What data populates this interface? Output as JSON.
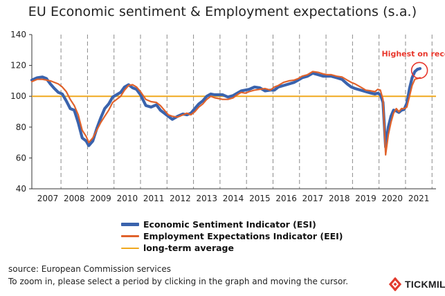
{
  "title": "EU Economic sentiment & Employment expectations (s.a.)",
  "chart_data": {
    "type": "line",
    "title": "EU Economic sentiment & Employment expectations (s.a.)",
    "xlabel": "",
    "ylabel": "",
    "xlim": [
      2006.9,
      2022.15
    ],
    "ylim": [
      40,
      140
    ],
    "yticks": [
      40,
      60,
      80,
      100,
      120,
      140
    ],
    "x_tick_labels": [
      "2007",
      "2008",
      "2009",
      "2010",
      "2011",
      "2012",
      "2013",
      "2014",
      "2015",
      "2016",
      "2017",
      "2018",
      "2019",
      "2020",
      "2021"
    ],
    "year_separators": [
      2008,
      2009,
      2010,
      2011,
      2012,
      2013,
      2014,
      2015,
      2016,
      2017,
      2018,
      2019,
      2020,
      2021,
      2022
    ],
    "grid": "vertical dashed at year boundaries",
    "legend_position": "bottom",
    "series": [
      {
        "name": "Economic Sentiment Indicator (ESI)",
        "color": "#3a63ad",
        "x": [
          2006.9,
          2007.1,
          2007.3,
          2007.45,
          2007.6,
          2007.75,
          2007.9,
          2008.05,
          2008.2,
          2008.35,
          2008.5,
          2008.65,
          2008.8,
          2008.95,
          2009.05,
          2009.2,
          2009.35,
          2009.5,
          2009.65,
          2009.8,
          2009.95,
          2010.1,
          2010.25,
          2010.4,
          2010.55,
          2010.7,
          2010.85,
          2011.0,
          2011.2,
          2011.4,
          2011.6,
          2011.75,
          2011.9,
          2012.05,
          2012.2,
          2012.4,
          2012.6,
          2012.75,
          2012.9,
          2013.05,
          2013.2,
          2013.35,
          2013.5,
          2013.65,
          2013.8,
          2013.95,
          2014.1,
          2014.3,
          2014.5,
          2014.65,
          2014.8,
          2014.95,
          2015.1,
          2015.3,
          2015.5,
          2015.7,
          2015.9,
          2016.05,
          2016.2,
          2016.4,
          2016.6,
          2016.8,
          2016.95,
          2017.1,
          2017.3,
          2017.5,
          2017.7,
          2017.9,
          2018.05,
          2018.2,
          2018.4,
          2018.6,
          2018.8,
          2018.95,
          2019.1,
          2019.3,
          2019.5,
          2019.7,
          2019.85,
          2019.95,
          2020.05,
          2020.15,
          2020.25,
          2020.35,
          2020.45,
          2020.55,
          2020.65,
          2020.75,
          2020.85,
          2020.95,
          2021.05,
          2021.15,
          2021.25,
          2021.35,
          2021.45,
          2021.55
        ],
        "values": [
          110.5,
          112,
          112.5,
          111.5,
          108,
          105,
          102.5,
          101.5,
          97,
          92,
          91,
          83,
          73,
          71,
          68,
          71,
          79,
          86,
          92,
          95,
          99.5,
          101,
          102.5,
          106,
          107.5,
          105.5,
          104.5,
          101,
          94,
          93,
          94.5,
          91,
          89,
          87,
          85,
          87,
          88.5,
          88,
          89,
          92,
          95,
          97,
          100,
          101.5,
          101,
          101,
          101,
          99.5,
          100.5,
          102,
          103.5,
          104,
          104.5,
          106,
          105.5,
          103.5,
          104,
          104,
          106,
          107,
          108,
          109,
          110.5,
          112,
          113,
          115,
          114,
          113,
          113,
          113,
          112,
          111,
          108,
          106,
          105,
          104,
          103,
          102,
          101.5,
          102,
          101,
          96,
          67,
          80,
          87,
          91,
          90.5,
          89.5,
          91,
          91.5,
          95.5,
          105,
          112,
          116,
          117.5,
          118
        ]
      },
      {
        "name": "Employment Expectations Indicator (EEI)",
        "color": "#e0622b",
        "x": [
          2006.9,
          2007.1,
          2007.3,
          2007.45,
          2007.6,
          2007.75,
          2007.9,
          2008.05,
          2008.2,
          2008.35,
          2008.5,
          2008.65,
          2008.8,
          2008.95,
          2009.05,
          2009.2,
          2009.35,
          2009.5,
          2009.65,
          2009.8,
          2009.95,
          2010.1,
          2010.25,
          2010.4,
          2010.55,
          2010.7,
          2010.85,
          2011.0,
          2011.2,
          2011.4,
          2011.6,
          2011.75,
          2011.9,
          2012.05,
          2012.2,
          2012.4,
          2012.6,
          2012.75,
          2012.9,
          2013.05,
          2013.2,
          2013.35,
          2013.5,
          2013.65,
          2013.8,
          2013.95,
          2014.1,
          2014.3,
          2014.5,
          2014.65,
          2014.8,
          2014.95,
          2015.1,
          2015.3,
          2015.5,
          2015.7,
          2015.9,
          2016.05,
          2016.2,
          2016.4,
          2016.6,
          2016.8,
          2016.95,
          2017.1,
          2017.3,
          2017.5,
          2017.7,
          2017.9,
          2018.05,
          2018.2,
          2018.4,
          2018.6,
          2018.8,
          2018.95,
          2019.1,
          2019.3,
          2019.5,
          2019.7,
          2019.85,
          2019.95,
          2020.05,
          2020.15,
          2020.25,
          2020.35,
          2020.45,
          2020.55,
          2020.65,
          2020.75,
          2020.85,
          2020.95,
          2021.05,
          2021.15,
          2021.25,
          2021.35,
          2021.45,
          2021.55
        ],
        "values": [
          109.5,
          111,
          111,
          110.5,
          110,
          109,
          108,
          106,
          103,
          98,
          94,
          88,
          78,
          74,
          70,
          73,
          78,
          83,
          87,
          91,
          96,
          98,
          100,
          104,
          107,
          107.5,
          106,
          103,
          98,
          96.5,
          96,
          94,
          91,
          88,
          87,
          86.5,
          88,
          89,
          88,
          90,
          93,
          95,
          98,
          100,
          99,
          98.5,
          98,
          98,
          99,
          101,
          102.5,
          102,
          103,
          104,
          104.5,
          105,
          104,
          106,
          107,
          109,
          110,
          110.5,
          111.5,
          113,
          114,
          116,
          115.5,
          114.5,
          114,
          114,
          113,
          112.5,
          110.5,
          109,
          108,
          106,
          104,
          103.5,
          103,
          104.5,
          104,
          98,
          62,
          75,
          83,
          89,
          92,
          90,
          92,
          92,
          93,
          100,
          107,
          111,
          111.5,
          112
        ]
      },
      {
        "name": "long-term average",
        "color": "#f0a81e",
        "x": [
          2006.9,
          2022.15
        ],
        "values": [
          100,
          100
        ]
      }
    ],
    "annotations": [
      {
        "text": "Highest on record",
        "color": "#e8362b",
        "x": 2021.5,
        "y": 117
      }
    ]
  },
  "footer": {
    "source": "source: European Commission services",
    "instruction": "To zoom in, please select a period by clicking in the graph and moving the cursor."
  },
  "brand": {
    "name": "TICKMILL",
    "icon": "tickmill-logo-icon",
    "color": "#e23b2e"
  }
}
